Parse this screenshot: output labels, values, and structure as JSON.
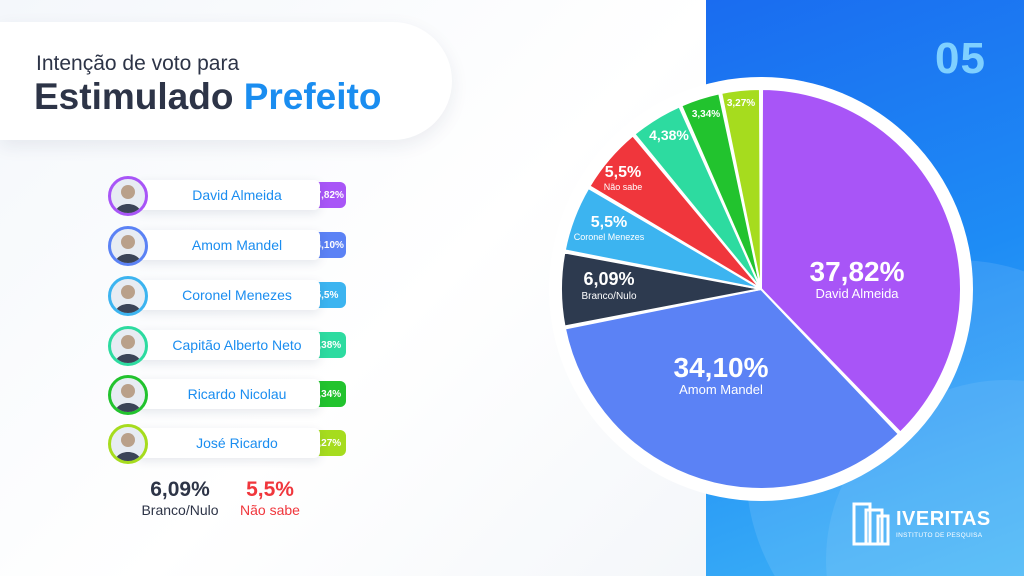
{
  "header": {
    "subtitle": "Intenção de voto para",
    "title_main": "Estimulado",
    "title_accent": "Prefeito"
  },
  "page_number": "05",
  "candidates": [
    {
      "name": "David Almeida",
      "value_label": "37,82%",
      "color": "#a855f7",
      "avatar_icon": "person-avatar-icon"
    },
    {
      "name": "Amom Mandel",
      "value_label": "34,10%",
      "color": "#5b82f5",
      "avatar_icon": "person-avatar-icon"
    },
    {
      "name": "Coronel Menezes",
      "value_label": "5,5%",
      "color": "#3cb4f0",
      "avatar_icon": "person-avatar-icon"
    },
    {
      "name": "Capitão Alberto Neto",
      "value_label": "4,38%",
      "color": "#2ddba0",
      "avatar_icon": "person-avatar-icon"
    },
    {
      "name": "Ricardo Nicolau",
      "value_label": "3,34%",
      "color": "#22c32e",
      "avatar_icon": "person-avatar-icon"
    },
    {
      "name": "José Ricardo",
      "value_label": "3,27%",
      "color": "#a6dc1e",
      "avatar_icon": "person-avatar-icon"
    }
  ],
  "bottom": {
    "branco": {
      "value": "6,09%",
      "label": "Branco/Nulo",
      "color": "#2d3447"
    },
    "naosabe": {
      "value": "5,5%",
      "label": "Não sabe",
      "color": "#f0363c"
    }
  },
  "logo": {
    "name": "IVERITAS",
    "sub": "INSTITUTO DE PESQUISA"
  },
  "chart_data": {
    "type": "pie",
    "slices": [
      {
        "label": "David Almeida",
        "value": 37.82,
        "value_label": "37,82%",
        "color": "#a855f7"
      },
      {
        "label": "Amom Mandel",
        "value": 34.1,
        "value_label": "34,10%",
        "color": "#5b82f5"
      },
      {
        "label": "Branco/Nulo",
        "value": 6.09,
        "value_label": "6,09%",
        "color": "#2d3a4f"
      },
      {
        "label": "Coronel Menezes",
        "value": 5.5,
        "value_label": "5,5%",
        "color": "#3cb4f0"
      },
      {
        "label": "Não sabe",
        "value": 5.5,
        "value_label": "5,5%",
        "color": "#f0363c"
      },
      {
        "label": "",
        "value": 4.38,
        "value_label": "4,38%",
        "color": "#2ddba0"
      },
      {
        "label": "",
        "value": 3.34,
        "value_label": "3,34%",
        "color": "#22c32e"
      },
      {
        "label": "",
        "value": 3.27,
        "value_label": "3,27%",
        "color": "#a6dc1e"
      }
    ]
  }
}
